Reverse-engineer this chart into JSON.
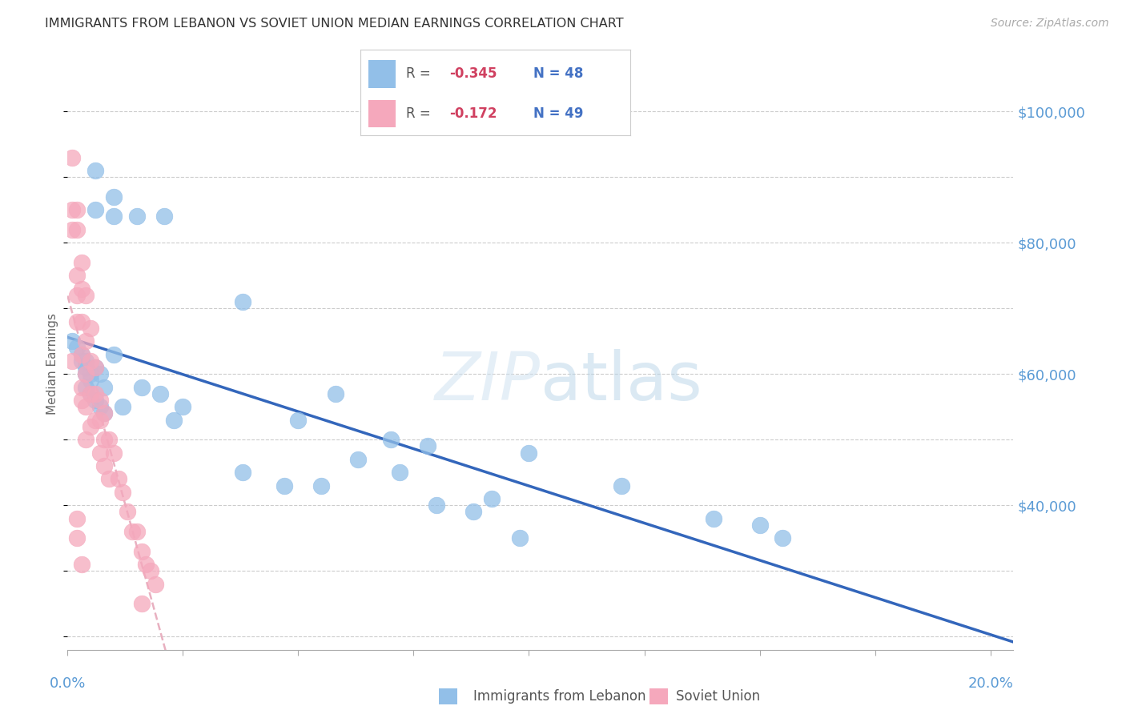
{
  "title": "IMMIGRANTS FROM LEBANON VS SOVIET UNION MEDIAN EARNINGS CORRELATION CHART",
  "source": "Source: ZipAtlas.com",
  "ylabel": "Median Earnings",
  "xlim": [
    0.0,
    0.205
  ],
  "ylim": [
    18000,
    105000
  ],
  "watermark_zip": "ZIP",
  "watermark_atlas": "atlas",
  "lebanon_label": "Immigrants from Lebanon",
  "soviet_label": "Soviet Union",
  "r1_val": "-0.345",
  "n1_val": "48",
  "r2_val": "-0.172",
  "n2_val": "49",
  "lebanon_color": "#92bfe8",
  "soviet_color": "#f5a8bc",
  "lebanon_line_color": "#3366bb",
  "soviet_line_color": "#e8b0c0",
  "axis_label_color": "#5b9bd5",
  "title_color": "#333333",
  "grid_color": "#cccccc",
  "background_color": "#ffffff",
  "lebanon_x": [
    0.006,
    0.01,
    0.006,
    0.01,
    0.015,
    0.021,
    0.001,
    0.002,
    0.003,
    0.003,
    0.004,
    0.004,
    0.005,
    0.004,
    0.005,
    0.006,
    0.007,
    0.008,
    0.004,
    0.005,
    0.006,
    0.007,
    0.008,
    0.01,
    0.012,
    0.016,
    0.02,
    0.023,
    0.038,
    0.07,
    0.1,
    0.12,
    0.14,
    0.155,
    0.05,
    0.058,
    0.078,
    0.092,
    0.025,
    0.038,
    0.047,
    0.055,
    0.063,
    0.072,
    0.08,
    0.088,
    0.098,
    0.15
  ],
  "lebanon_y": [
    91000,
    87000,
    85000,
    84000,
    84000,
    84000,
    65000,
    64000,
    63000,
    62000,
    62000,
    61000,
    60000,
    60000,
    59000,
    61000,
    60000,
    58000,
    58000,
    57000,
    56000,
    55000,
    54000,
    63000,
    55000,
    58000,
    57000,
    53000,
    71000,
    50000,
    48000,
    43000,
    38000,
    35000,
    53000,
    57000,
    49000,
    41000,
    55000,
    45000,
    43000,
    43000,
    47000,
    45000,
    40000,
    39000,
    35000,
    37000
  ],
  "soviet_x": [
    0.001,
    0.001,
    0.001,
    0.002,
    0.002,
    0.002,
    0.002,
    0.002,
    0.003,
    0.003,
    0.003,
    0.003,
    0.003,
    0.003,
    0.004,
    0.004,
    0.004,
    0.004,
    0.004,
    0.005,
    0.005,
    0.005,
    0.005,
    0.006,
    0.006,
    0.006,
    0.007,
    0.007,
    0.007,
    0.008,
    0.008,
    0.008,
    0.009,
    0.009,
    0.01,
    0.011,
    0.012,
    0.013,
    0.014,
    0.015,
    0.016,
    0.017,
    0.018,
    0.019,
    0.001,
    0.002,
    0.002,
    0.003,
    0.016
  ],
  "soviet_y": [
    93000,
    85000,
    82000,
    85000,
    82000,
    75000,
    72000,
    68000,
    77000,
    73000,
    68000,
    63000,
    58000,
    56000,
    72000,
    65000,
    60000,
    55000,
    50000,
    67000,
    62000,
    57000,
    52000,
    61000,
    57000,
    53000,
    56000,
    53000,
    48000,
    54000,
    50000,
    46000,
    50000,
    44000,
    48000,
    44000,
    42000,
    39000,
    36000,
    36000,
    33000,
    31000,
    30000,
    28000,
    62000,
    38000,
    35000,
    31000,
    25000
  ]
}
